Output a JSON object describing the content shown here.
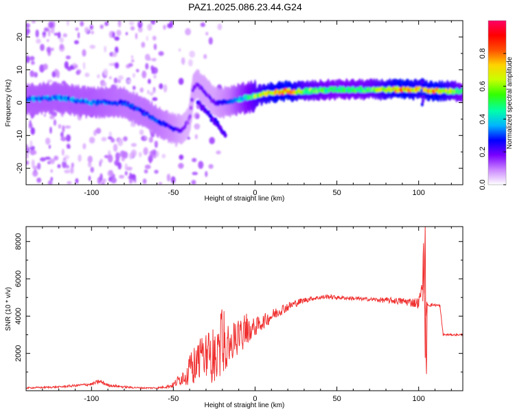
{
  "title": "PAZ1.2025.086.23.44.G24",
  "chart_data": [
    {
      "type": "heatmap",
      "xlabel": "Height of straight line (km)",
      "ylabel": "Frequency (Hz)",
      "xlim": [
        -140,
        127
      ],
      "ylim": [
        -25,
        25
      ],
      "xticks": [
        -100,
        -50,
        0,
        50,
        100
      ],
      "yticks": [
        -20,
        -10,
        0,
        10,
        20
      ],
      "grid": false,
      "colorbar": {
        "label": "Normalized spectral amplitude",
        "range": [
          0,
          1
        ],
        "ticks": [
          "0.0",
          "0.2",
          "0.4",
          "0.6",
          "0.8"
        ],
        "colormap": "rainbow",
        "colors": [
          "#ffffff",
          "#cc88ff",
          "#7a00ff",
          "#0000ff",
          "#00b4ff",
          "#00ffaa",
          "#33ff00",
          "#c8ff00",
          "#ffd200",
          "#ff5000",
          "#ff0000",
          "#ff0066"
        ]
      },
      "ridge": {
        "x": [
          -140,
          -120,
          -100,
          -80,
          -70,
          -60,
          -50,
          -45,
          -40,
          -38,
          -35,
          -30,
          -25,
          -20,
          -15,
          -10,
          -5,
          0,
          10,
          20,
          30,
          50,
          70,
          90,
          100,
          110,
          127
        ],
        "freq": [
          1,
          1.5,
          0,
          0,
          -2.5,
          -5.5,
          -8,
          -8.5,
          -5,
          4,
          5.5,
          3,
          0,
          0,
          0.5,
          1,
          1.5,
          2,
          3,
          3.5,
          3.5,
          4,
          4,
          4,
          4,
          3.5,
          3.5
        ],
        "amp": [
          0.35,
          0.35,
          0.35,
          0.3,
          0.3,
          0.3,
          0.25,
          0.2,
          0.15,
          0.2,
          0.2,
          0.2,
          0.2,
          0.25,
          0.3,
          0.4,
          0.5,
          0.6,
          0.75,
          0.8,
          0.6,
          0.5,
          0.55,
          0.8,
          0.7,
          0.8,
          0.5
        ]
      }
    },
    {
      "type": "line",
      "xlabel": "Height of straight line (km)",
      "ylabel": "SNR (10 * v/v)",
      "xlim": [
        -140,
        127
      ],
      "ylim": [
        0,
        8800
      ],
      "xticks": [
        -100,
        -50,
        0,
        50,
        100
      ],
      "yticks": [
        2000,
        4000,
        6000,
        8000
      ],
      "grid": false,
      "color": "#f03030",
      "series": [
        {
          "x": [
            -140,
            -120,
            -100,
            -95,
            -90,
            -80,
            -70,
            -60,
            -55,
            -50,
            -45,
            -40,
            -35,
            -30,
            -25,
            -20,
            -15,
            -10,
            -5,
            0,
            5,
            10,
            15,
            20,
            25,
            30,
            35,
            40,
            45,
            50,
            60,
            70,
            80,
            90,
            95,
            100,
            102,
            103,
            104,
            105,
            106,
            110,
            113,
            115,
            120,
            127
          ],
          "y": [
            150,
            200,
            350,
            500,
            300,
            200,
            150,
            150,
            200,
            300,
            700,
            1100,
            1600,
            1800,
            1900,
            2200,
            2500,
            2800,
            3200,
            3400,
            3700,
            4000,
            4300,
            4500,
            4700,
            4850,
            4950,
            5000,
            5050,
            5000,
            4950,
            4900,
            4850,
            4800,
            4750,
            4700,
            5500,
            7000,
            2500,
            4700,
            4600,
            4600,
            4550,
            3000,
            3000,
            3000
          ],
          "noise": [
            40,
            50,
            80,
            120,
            80,
            60,
            40,
            40,
            60,
            150,
            400,
            800,
            1200,
            1400,
            1500,
            1300,
            1100,
            900,
            700,
            500,
            400,
            350,
            300,
            250,
            200,
            150,
            120,
            120,
            120,
            100,
            100,
            100,
            150,
            200,
            250,
            300,
            400,
            800,
            800,
            150,
            100,
            80,
            80,
            60,
            50,
            50
          ]
        }
      ]
    }
  ]
}
